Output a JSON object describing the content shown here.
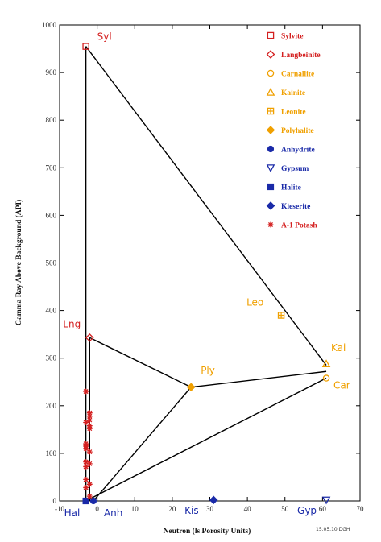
{
  "chart_data": {
    "type": "scatter",
    "xlabel": "Neutron (ls Porosity Units)",
    "ylabel": "Gamma Ray Above Background (API)",
    "xlim": [
      -10,
      70
    ],
    "ylim": [
      0,
      1000
    ],
    "xticks": [
      -10,
      0,
      10,
      20,
      30,
      40,
      50,
      60,
      70
    ],
    "yticks": [
      0,
      100,
      200,
      300,
      400,
      500,
      600,
      700,
      800,
      900,
      1000
    ],
    "tick_labels_x": [
      "-10",
      "0",
      "10",
      "20",
      "30",
      "40",
      "50",
      "60",
      "70"
    ],
    "tick_labels_y": [
      "0",
      "100",
      "200",
      "300",
      "400",
      "500",
      "600",
      "700",
      "800",
      "900",
      "1000"
    ],
    "grid": false,
    "legend_position": "top-right",
    "series": [
      {
        "name": "Sylvite",
        "marker": "square-open",
        "color": "#d42020",
        "points": [
          [
            -3,
            955
          ]
        ]
      },
      {
        "name": "Langbeinite",
        "marker": "diamond-open",
        "color": "#d42020",
        "points": [
          [
            -2,
            343
          ]
        ]
      },
      {
        "name": "Carnallite",
        "marker": "circle-open",
        "color": "#f0a000",
        "points": [
          [
            61,
            258
          ]
        ]
      },
      {
        "name": "Kainite",
        "marker": "triangle-open",
        "color": "#f0a000",
        "points": [
          [
            61,
            288
          ]
        ]
      },
      {
        "name": "Leonite",
        "marker": "square-plus",
        "color": "#f0a000",
        "points": [
          [
            49,
            390
          ]
        ]
      },
      {
        "name": "Polyhalite",
        "marker": "diamond-filled",
        "color": "#f0a000",
        "points": [
          [
            25,
            239
          ]
        ]
      },
      {
        "name": "Anhydrite",
        "marker": "circle-filled",
        "color": "#1a2aa8",
        "points": [
          [
            -1,
            0
          ]
        ]
      },
      {
        "name": "Gypsum",
        "marker": "triangle-down-open",
        "color": "#1a2aa8",
        "points": [
          [
            61,
            2
          ]
        ]
      },
      {
        "name": "Halite",
        "marker": "square-filled",
        "color": "#1a2aa8",
        "points": [
          [
            -3,
            0
          ]
        ]
      },
      {
        "name": "Kieserite",
        "marker": "diamond-filled",
        "color": "#1a2aa8",
        "points": [
          [
            31,
            2
          ]
        ]
      },
      {
        "name": "A-1 Potash",
        "marker": "asterisk",
        "color": "#d42020",
        "points": [
          [
            -3,
            230
          ],
          [
            -2,
            185
          ],
          [
            -2,
            178
          ],
          [
            -2,
            170
          ],
          [
            -3,
            165
          ],
          [
            -2,
            158
          ],
          [
            -2,
            152
          ],
          [
            -3,
            120
          ],
          [
            -3,
            115
          ],
          [
            -3,
            110
          ],
          [
            -2,
            103
          ],
          [
            -3,
            82
          ],
          [
            -2,
            78
          ],
          [
            -3,
            72
          ],
          [
            -3,
            45
          ],
          [
            -2,
            35
          ],
          [
            -3,
            28
          ],
          [
            -2,
            10
          ]
        ]
      }
    ],
    "tie_lines": [
      [
        [
          -3,
          955
        ],
        [
          -3,
          0
        ]
      ],
      [
        [
          -3,
          955
        ],
        [
          61,
          285
        ]
      ],
      [
        [
          -2,
          343
        ],
        [
          25,
          239
        ]
      ],
      [
        [
          -2,
          343
        ],
        [
          -2,
          0
        ]
      ],
      [
        [
          25,
          239
        ],
        [
          61,
          272
        ]
      ],
      [
        [
          25,
          239
        ],
        [
          -1,
          0
        ]
      ],
      [
        [
          -3,
          0
        ],
        [
          61,
          258
        ]
      ]
    ],
    "point_labels": [
      {
        "text": "Syl",
        "x": -3,
        "y": 955,
        "color": "#d42020",
        "dx": 14,
        "dy": -8
      },
      {
        "text": "Lng",
        "x": -2,
        "y": 343,
        "color": "#d42020",
        "dx": -33,
        "dy": -13
      },
      {
        "text": "Leo",
        "x": 49,
        "y": 390,
        "color": "#f0a000",
        "dx": -43,
        "dy": -12
      },
      {
        "text": "Kai",
        "x": 61,
        "y": 288,
        "color": "#f0a000",
        "dx": 6,
        "dy": -16
      },
      {
        "text": "Ply",
        "x": 25,
        "y": 239,
        "color": "#f0a000",
        "dx": 12,
        "dy": -17
      },
      {
        "text": "Car",
        "x": 61,
        "y": 258,
        "color": "#f0a000",
        "dx": 9,
        "dy": 13
      },
      {
        "text": "Hal",
        "x": -3,
        "y": 0,
        "color": "#1a2aa8",
        "dx": -27,
        "dy": 19
      },
      {
        "text": "Anh",
        "x": -1,
        "y": 0,
        "color": "#1a2aa8",
        "dx": 13,
        "dy": 19
      },
      {
        "text": "Kis",
        "x": 31,
        "y": 2,
        "color": "#1a2aa8",
        "dx": -36,
        "dy": 17
      },
      {
        "text": "Gyp",
        "x": 61,
        "y": 2,
        "color": "#1a2aa8",
        "dx": -36,
        "dy": 17
      }
    ],
    "legend": [
      {
        "name": "Sylvite",
        "text": "Sylvite",
        "color": "#d42020",
        "marker": "square-open"
      },
      {
        "name": "Langbeinite",
        "text": "Langbeinite",
        "color": "#d42020",
        "marker": "diamond-open"
      },
      {
        "name": "Carnallite",
        "text": "Carnallite",
        "color": "#f0a000",
        "marker": "circle-open"
      },
      {
        "name": "Kainite",
        "text": "Kainite",
        "color": "#f0a000",
        "marker": "triangle-open"
      },
      {
        "name": "Leonite",
        "text": "Leonite",
        "color": "#f0a000",
        "marker": "square-plus"
      },
      {
        "name": "Polyhalite",
        "text": "Polyhalite",
        "color": "#f0a000",
        "marker": "diamond-filled"
      },
      {
        "name": "Anhydrite",
        "text": "Anhydrite",
        "color": "#1a2aa8",
        "marker": "circle-filled"
      },
      {
        "name": "Gypsum",
        "text": "Gypsum",
        "color": "#1a2aa8",
        "marker": "triangle-down-open"
      },
      {
        "name": "Halite",
        "text": "Halite",
        "color": "#1a2aa8",
        "marker": "square-filled"
      },
      {
        "name": "Kieserite",
        "text": "Kieserite",
        "color": "#1a2aa8",
        "marker": "diamond-filled"
      },
      {
        "name": "A-1 Potash",
        "text": "A-1 Potash",
        "color": "#d42020",
        "marker": "asterisk"
      }
    ],
    "footnote": "15.05.10 DGH"
  }
}
